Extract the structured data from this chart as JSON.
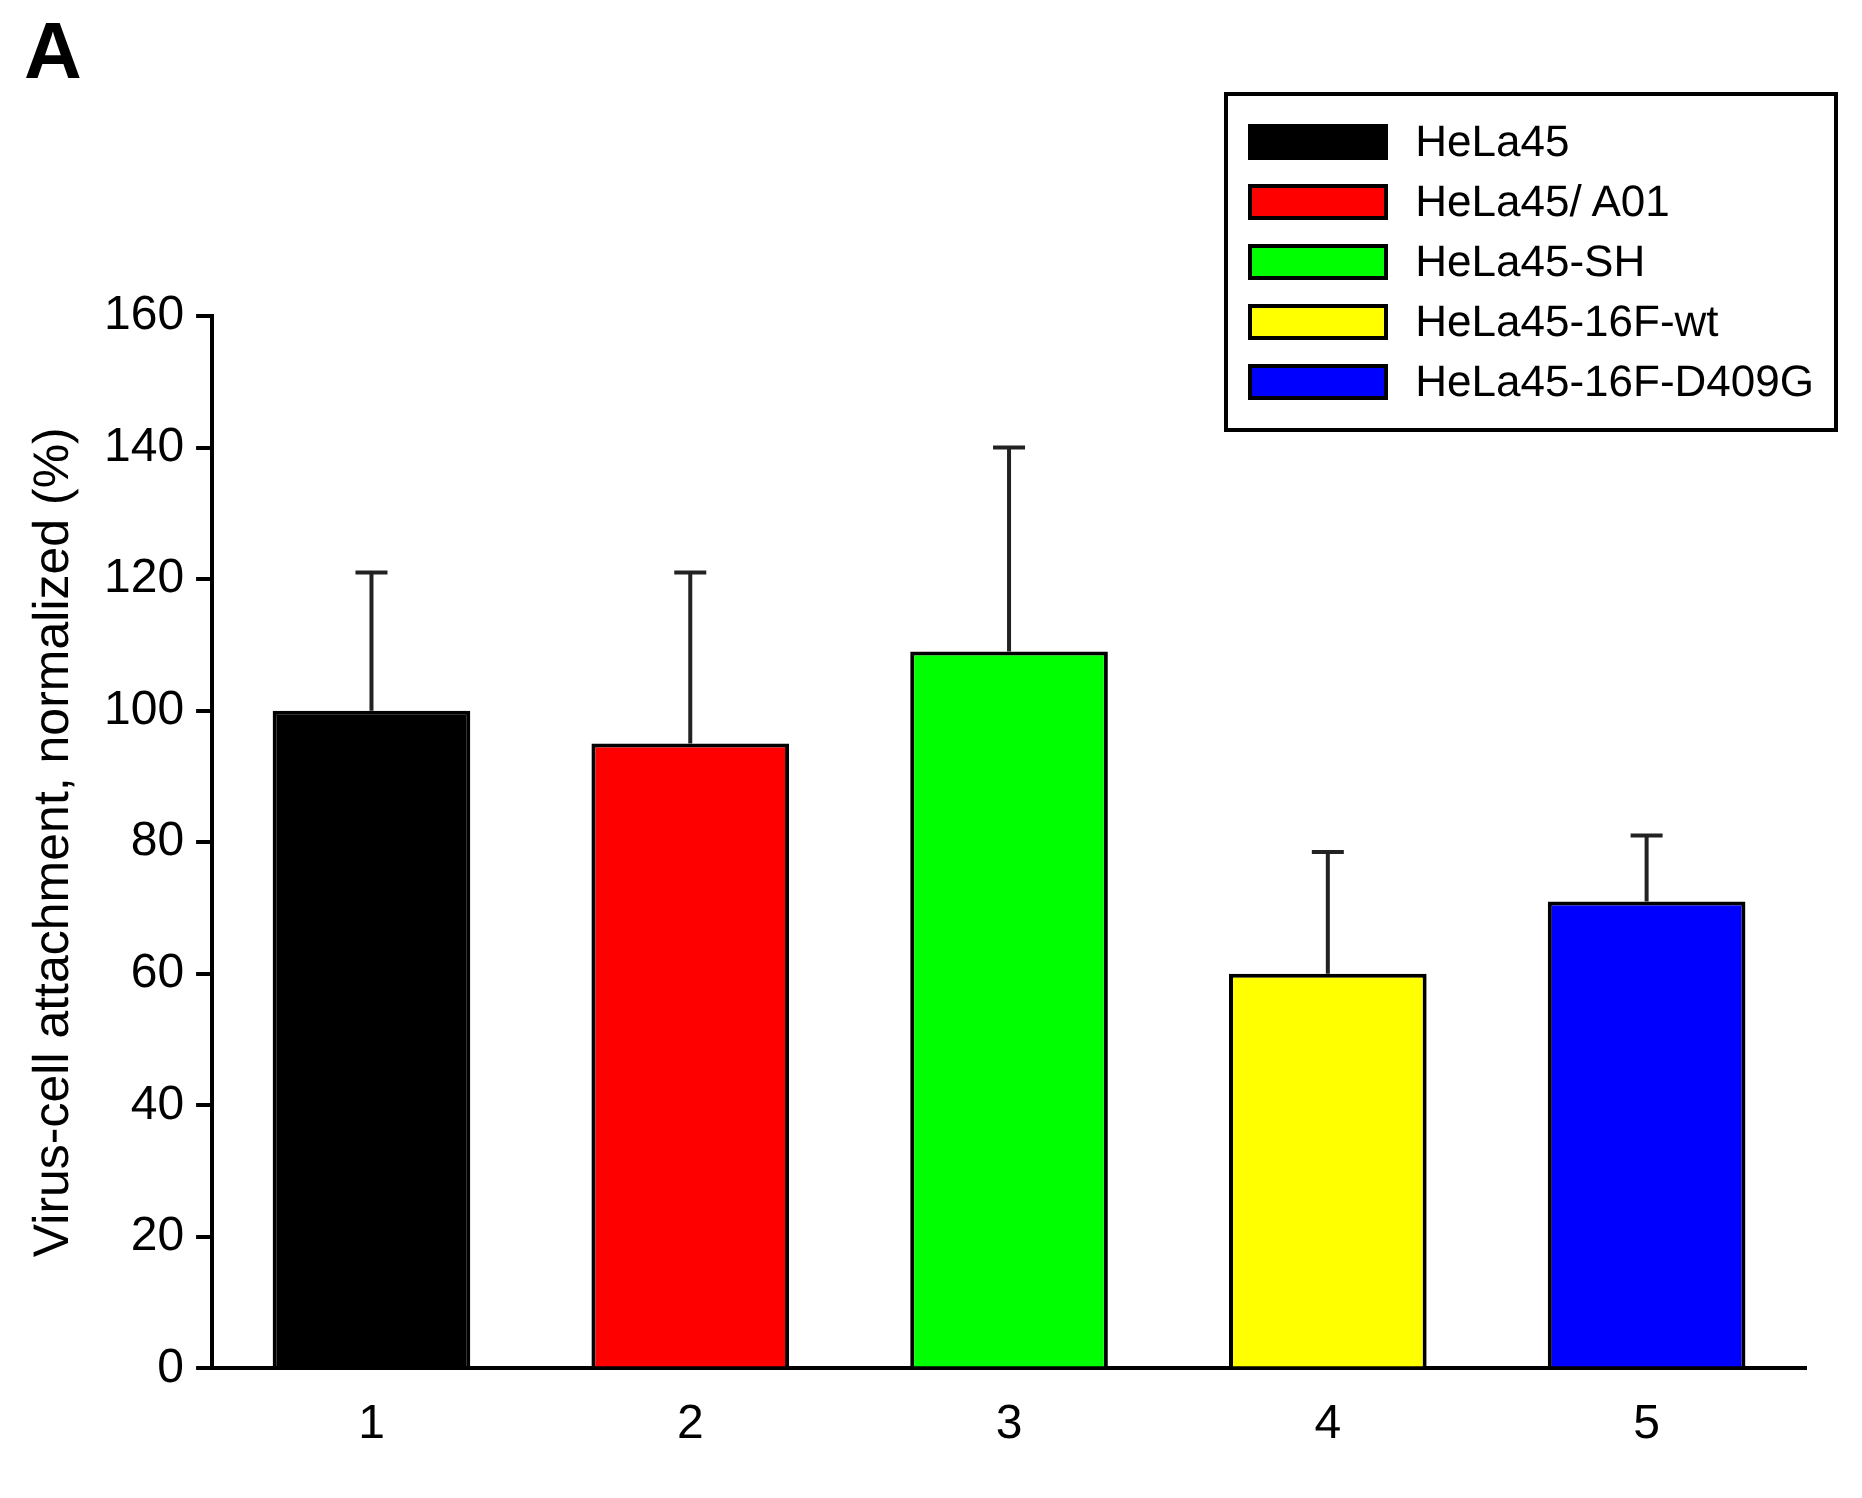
{
  "chart_data": {
    "type": "bar",
    "ylabel": "Virus-cell attachment, normalized (%)",
    "annotations": [
      "A"
    ],
    "categories": [
      "1",
      "2",
      "3",
      "4",
      "5"
    ],
    "series": [
      {
        "name": "HeLa45",
        "color": "#000000",
        "values": [
          100,
          null,
          null,
          null,
          null
        ],
        "errors": [
          21,
          null,
          null,
          null,
          null
        ]
      },
      {
        "name": "HeLa45/ A01",
        "color": "#ff0000",
        "values": [
          null,
          95,
          null,
          null,
          null
        ],
        "errors": [
          null,
          26,
          null,
          null,
          null
        ]
      },
      {
        "name": "HeLa45-SH",
        "color": "#00ff00",
        "values": [
          null,
          null,
          109,
          null,
          null
        ],
        "errors": [
          null,
          null,
          31,
          null,
          null
        ]
      },
      {
        "name": "HeLa45-16F-wt",
        "color": "#ffff00",
        "values": [
          null,
          null,
          null,
          60,
          null
        ],
        "errors": [
          null,
          null,
          null,
          18.5,
          null
        ]
      },
      {
        "name": "HeLa45-16F-D409G",
        "color": "#0000ff",
        "values": [
          null,
          null,
          null,
          null,
          71
        ],
        "errors": [
          null,
          null,
          null,
          null,
          10
        ]
      }
    ],
    "ylim": [
      0,
      160
    ],
    "yticks": [
      0,
      20,
      40,
      60,
      80,
      100,
      120,
      140,
      160
    ],
    "grid": false,
    "legend": "top right"
  }
}
